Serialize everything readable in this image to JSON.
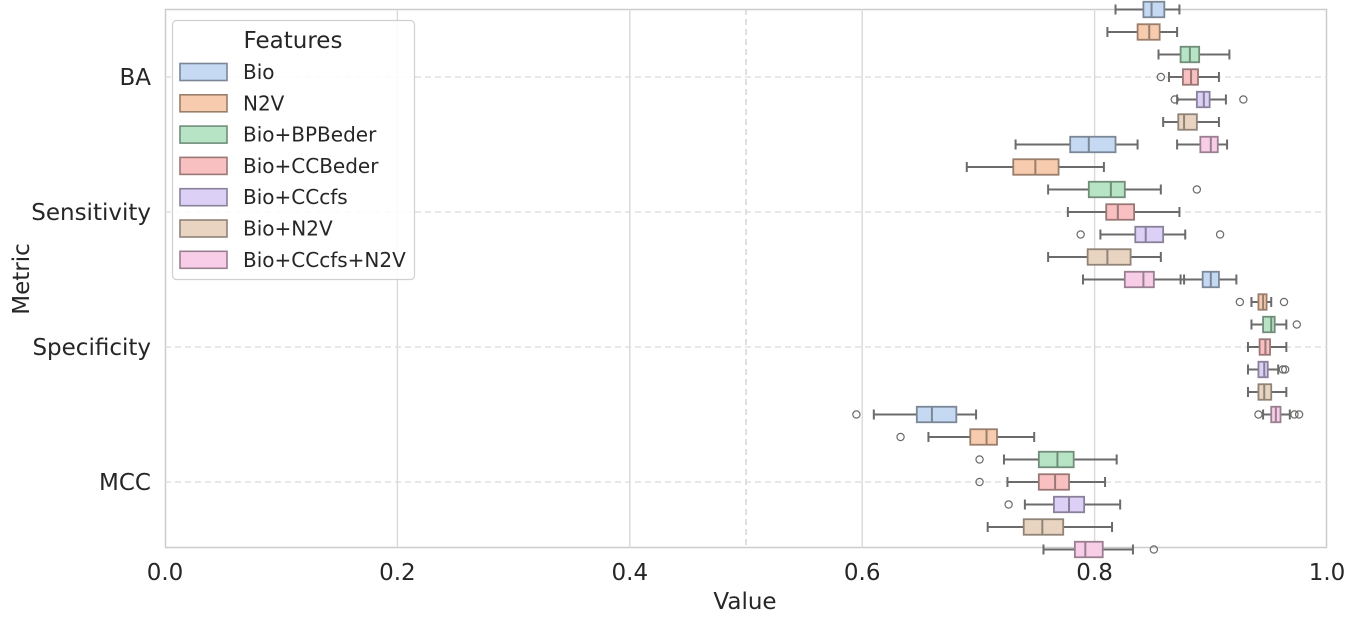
{
  "chart_data": {
    "type": "box",
    "orientation": "horizontal",
    "xlabel": "Value",
    "ylabel": "Metric",
    "xlim": [
      0,
      1
    ],
    "xticks": [
      "0.0",
      "0.2",
      "0.4",
      "0.6",
      "0.8",
      "1.0"
    ],
    "categories": [
      "BA",
      "Sensitivity",
      "Specificity",
      "MCC"
    ],
    "grid": true,
    "reference_lines": [
      0.5
    ],
    "legend": {
      "title": "Features",
      "placement": "upper-left"
    },
    "series": [
      {
        "name": "Bio",
        "color": "#c5daf2",
        "stats": [
          {
            "min": 0.818,
            "q1": 0.842,
            "median": 0.849,
            "q3": 0.86,
            "max": 0.873,
            "outliers": []
          },
          {
            "min": 0.732,
            "q1": 0.779,
            "median": 0.795,
            "q3": 0.818,
            "max": 0.837,
            "outliers": []
          },
          {
            "min": 0.874,
            "q1": 0.893,
            "median": 0.9,
            "q3": 0.907,
            "max": 0.922,
            "outliers": []
          },
          {
            "min": 0.61,
            "q1": 0.647,
            "median": 0.66,
            "q3": 0.681,
            "max": 0.698,
            "outliers": [
              0.595
            ]
          }
        ]
      },
      {
        "name": "N2V",
        "color": "#f7cbad",
        "stats": [
          {
            "min": 0.811,
            "q1": 0.837,
            "median": 0.847,
            "q3": 0.856,
            "max": 0.871,
            "outliers": []
          },
          {
            "min": 0.69,
            "q1": 0.73,
            "median": 0.749,
            "q3": 0.769,
            "max": 0.808,
            "outliers": []
          },
          {
            "min": 0.935,
            "q1": 0.941,
            "median": 0.945,
            "q3": 0.948,
            "max": 0.952,
            "outliers": [
              0.925,
              0.963
            ]
          },
          {
            "min": 0.657,
            "q1": 0.693,
            "median": 0.707,
            "q3": 0.716,
            "max": 0.748,
            "outliers": [
              0.633
            ]
          }
        ]
      },
      {
        "name": "Bio+BPBeder",
        "color": "#b7e4c4",
        "stats": [
          {
            "min": 0.855,
            "q1": 0.874,
            "median": 0.882,
            "q3": 0.89,
            "max": 0.916,
            "outliers": []
          },
          {
            "min": 0.76,
            "q1": 0.795,
            "median": 0.814,
            "q3": 0.826,
            "max": 0.857,
            "outliers": [
              0.888
            ]
          },
          {
            "min": 0.935,
            "q1": 0.945,
            "median": 0.952,
            "q3": 0.955,
            "max": 0.965,
            "outliers": [
              0.974
            ]
          },
          {
            "min": 0.722,
            "q1": 0.752,
            "median": 0.768,
            "q3": 0.782,
            "max": 0.819,
            "outliers": [
              0.701
            ]
          }
        ]
      },
      {
        "name": "Bio+CCBeder",
        "color": "#f8c0c0",
        "stats": [
          {
            "min": 0.864,
            "q1": 0.876,
            "median": 0.883,
            "q3": 0.889,
            "max": 0.907,
            "outliers": [
              0.857
            ]
          },
          {
            "min": 0.777,
            "q1": 0.81,
            "median": 0.82,
            "q3": 0.834,
            "max": 0.873,
            "outliers": []
          },
          {
            "min": 0.932,
            "q1": 0.942,
            "median": 0.947,
            "q3": 0.951,
            "max": 0.965,
            "outliers": []
          },
          {
            "min": 0.725,
            "q1": 0.752,
            "median": 0.766,
            "q3": 0.778,
            "max": 0.809,
            "outliers": [
              0.701
            ]
          }
        ]
      },
      {
        "name": "Bio+CCcfs",
        "color": "#ddd0f7",
        "stats": [
          {
            "min": 0.871,
            "q1": 0.888,
            "median": 0.894,
            "q3": 0.899,
            "max": 0.913,
            "outliers": [
              0.869,
              0.928
            ]
          },
          {
            "min": 0.805,
            "q1": 0.835,
            "median": 0.844,
            "q3": 0.859,
            "max": 0.878,
            "outliers": [
              0.788,
              0.908
            ]
          },
          {
            "min": 0.932,
            "q1": 0.941,
            "median": 0.946,
            "q3": 0.949,
            "max": 0.958,
            "outliers": [
              0.962,
              0.964
            ]
          },
          {
            "min": 0.74,
            "q1": 0.765,
            "median": 0.778,
            "q3": 0.791,
            "max": 0.822,
            "outliers": [
              0.726
            ]
          }
        ]
      },
      {
        "name": "Bio+N2V",
        "color": "#e8d4c0",
        "stats": [
          {
            "min": 0.859,
            "q1": 0.872,
            "median": 0.877,
            "q3": 0.888,
            "max": 0.907,
            "outliers": []
          },
          {
            "min": 0.76,
            "q1": 0.794,
            "median": 0.811,
            "q3": 0.831,
            "max": 0.857,
            "outliers": []
          },
          {
            "min": 0.932,
            "q1": 0.941,
            "median": 0.946,
            "q3": 0.952,
            "max": 0.965,
            "outliers": []
          },
          {
            "min": 0.708,
            "q1": 0.739,
            "median": 0.755,
            "q3": 0.773,
            "max": 0.815,
            "outliers": []
          }
        ]
      },
      {
        "name": "Bio+CCcfs+N2V",
        "color": "#f8cde8",
        "stats": [
          {
            "min": 0.871,
            "q1": 0.891,
            "median": 0.9,
            "q3": 0.906,
            "max": 0.914,
            "outliers": []
          },
          {
            "min": 0.79,
            "q1": 0.826,
            "median": 0.842,
            "q3": 0.851,
            "max": 0.877,
            "outliers": []
          },
          {
            "min": 0.945,
            "q1": 0.952,
            "median": 0.956,
            "q3": 0.96,
            "max": 0.968,
            "outliers": [
              0.941,
              0.972,
              0.976
            ]
          },
          {
            "min": 0.756,
            "q1": 0.783,
            "median": 0.792,
            "q3": 0.807,
            "max": 0.833,
            "outliers": [
              0.851
            ]
          }
        ]
      }
    ]
  }
}
